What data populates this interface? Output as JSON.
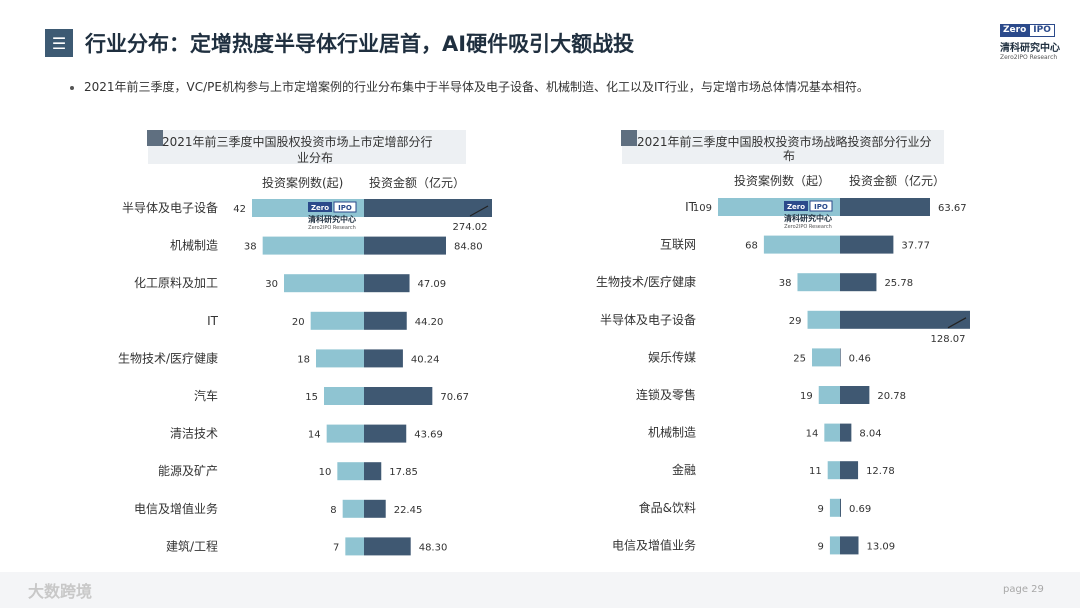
{
  "header": {
    "menu_icon": "hamburger-icon",
    "title": "行业分布：定增热度半导体行业居首，AI硬件吸引大额战投",
    "logo": {
      "zero": "Zero",
      "ipo": "IPO",
      "cn": "清科研究中心",
      "en": "Zero2IPO Research"
    }
  },
  "bullet": "2021年前三季度，VC/PE机构参与上市定增案例的行业分布集中于半导体及电子设备、机械制造、化工以及IT行业，与定增市场总体情况基本相符。",
  "footer": {
    "watermark": "大数跨境",
    "page": "page 29"
  },
  "colors": {
    "cases": "#8fc4d2",
    "amount": "#3f5872",
    "title_bg": "#edf0f3",
    "title_sq": "#5f6f80"
  },
  "chart_data": [
    {
      "type": "bar",
      "title": "2021年前三季度中国股权投资市场上市定增部分行业分布",
      "title_lines": [
        "2021年前三季度中国股权投资市场上市定增部分行",
        "业分布"
      ],
      "series_labels": [
        "投资案例数(起)",
        "投资金额（亿元）"
      ],
      "categories": [
        "半导体及电子设备",
        "机械制造",
        "化工原料及加工",
        "IT",
        "生物技术/医疗健康",
        "汽车",
        "清洁技术",
        "能源及矿产",
        "电信及增值业务",
        "建筑/工程"
      ],
      "series": [
        {
          "name": "投资案例数(起)",
          "values": [
            42,
            38,
            30,
            20,
            18,
            15,
            14,
            10,
            8,
            7
          ]
        },
        {
          "name": "投资金额（亿元）",
          "values": [
            274.02,
            84.8,
            47.09,
            44.2,
            40.24,
            70.67,
            43.69,
            17.85,
            22.45,
            48.3
          ]
        }
      ],
      "value_labels": {
        "cases": [
          "42",
          "38",
          "30",
          "20",
          "18",
          "15",
          "14",
          "10",
          "8",
          "7"
        ],
        "amount": [
          "274.02",
          "84.80",
          "47.09",
          "44.20",
          "40.24",
          "70.67",
          "43.69",
          "17.85",
          "22.45",
          "48.30"
        ]
      },
      "case_scale_max": 42,
      "amount_scale_max": 84.8,
      "axis_break": [
        true,
        false,
        false,
        false,
        false,
        false,
        false,
        false,
        false,
        false
      ]
    },
    {
      "type": "bar",
      "title": "2021年前三季度中国股权投资市场战略投资部分行业分布",
      "title_lines": [
        "2021年前三季度中国股权投资市场战略投资部分行业分",
        "布"
      ],
      "series_labels": [
        "投资案例数（起）",
        "投资金额（亿元）"
      ],
      "categories": [
        "IT",
        "互联网",
        "生物技术/医疗健康",
        "半导体及电子设备",
        "娱乐传媒",
        "连锁及零售",
        "机械制造",
        "金融",
        "食品&饮料",
        "电信及增值业务"
      ],
      "series": [
        {
          "name": "投资案例数（起）",
          "values": [
            109,
            68,
            38,
            29,
            25,
            19,
            14,
            11,
            9,
            9
          ]
        },
        {
          "name": "投资金额（亿元）",
          "values": [
            63.67,
            37.77,
            25.78,
            128.07,
            0.46,
            20.78,
            8.04,
            12.78,
            0.69,
            13.09
          ]
        }
      ],
      "value_labels": {
        "cases": [
          "109",
          "68",
          "38",
          "29",
          "25",
          "19",
          "14",
          "11",
          "9",
          "9"
        ],
        "amount": [
          "63.67",
          "37.77",
          "25.78",
          "128.07",
          "0.46",
          "20.78",
          "8.04",
          "12.78",
          "0.69",
          "13.09"
        ]
      },
      "case_scale_max": 109,
      "amount_scale_max": 63.67,
      "axis_break": [
        false,
        false,
        false,
        true,
        false,
        false,
        false,
        false,
        false,
        false
      ]
    }
  ]
}
